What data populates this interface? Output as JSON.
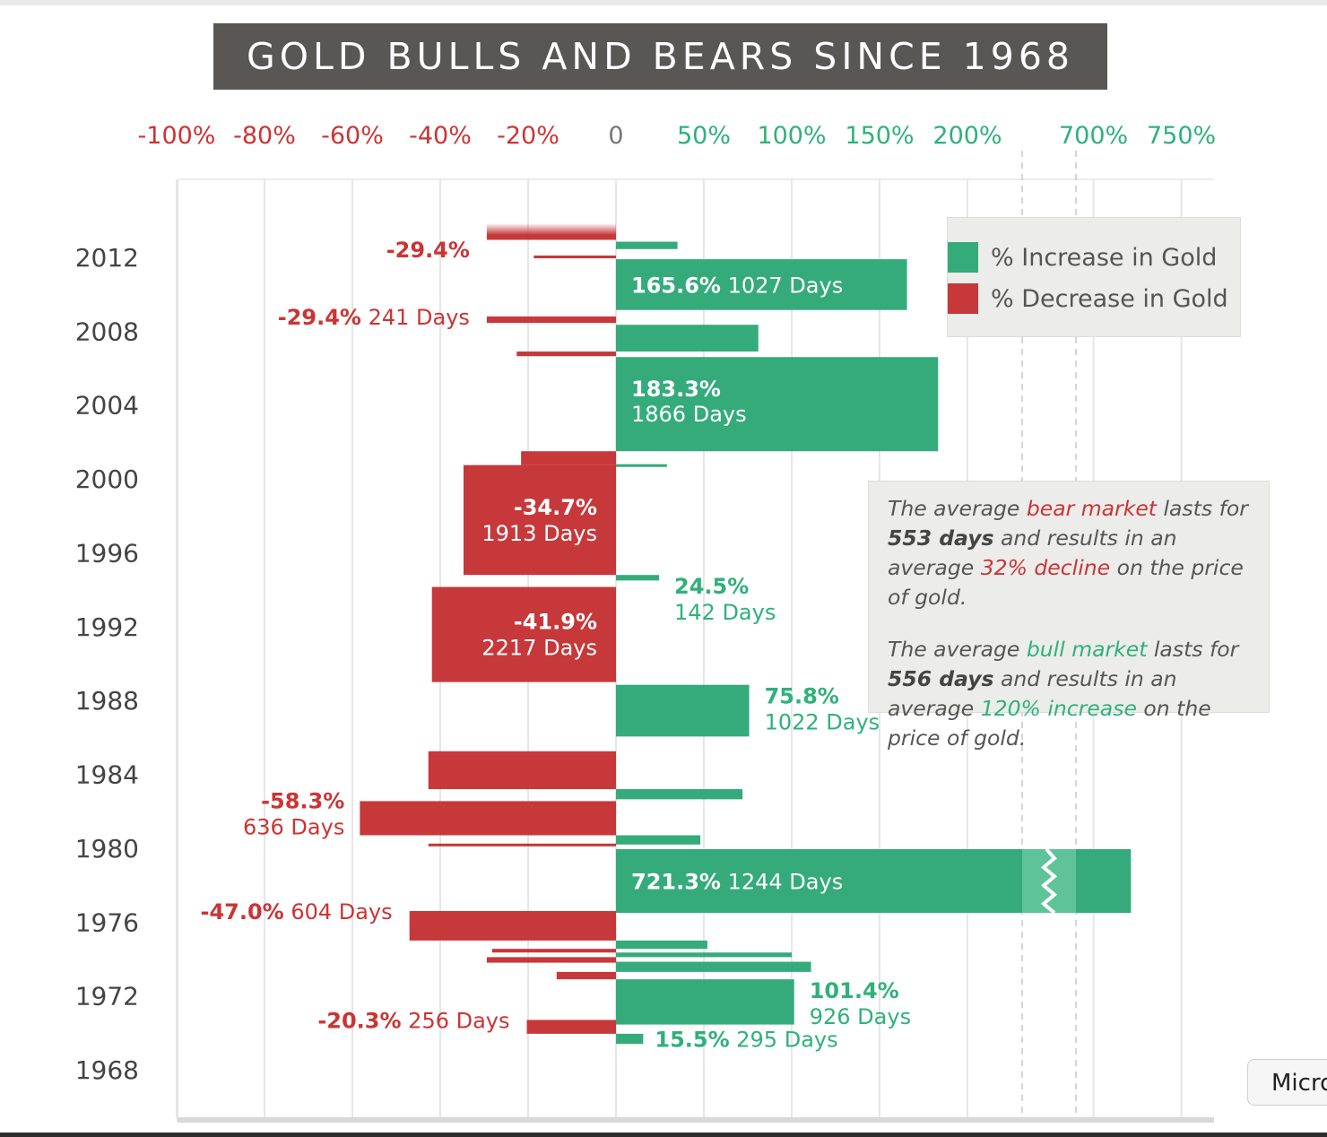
{
  "title": "GOLD BULLS AND BEARS SINCE 1968",
  "legend": [
    {
      "label": "% Increase in Gold",
      "color": "#35ab7c"
    },
    {
      "label": "% Decrease in Gold",
      "color": "#c7383a"
    }
  ],
  "note": {
    "bear": {
      "p1": "The average ",
      "hl1": "bear market",
      "p2": " lasts for ",
      "bold": "553 days",
      "p3": " and results in an average ",
      "hl2": "32% decline",
      "p4": " on the price of gold."
    },
    "bull": {
      "p1": "The average ",
      "hl1": "bull market",
      "p2": " lasts for ",
      "bold": "556 days",
      "p3": " and results in an average ",
      "hl2": "120% increase",
      "p4": " on the price of gold."
    }
  },
  "button": {
    "label": "Micro"
  },
  "chart_data": {
    "type": "bar",
    "orientation": "horizontal",
    "title": "GOLD BULLS AND BEARS SINCE 1968",
    "x_ticks_negative": [
      "-100%",
      "-80%",
      "-60%",
      "-40%",
      "-20%",
      "0"
    ],
    "x_ticks_positive": [
      "50%",
      "100%",
      "150%",
      "200%",
      "700%",
      "750%"
    ],
    "axis_break": {
      "from": 230,
      "to": 690
    },
    "y_ticks": [
      "2012",
      "2008",
      "2004",
      "2000",
      "1996",
      "1992",
      "1988",
      "1984",
      "1980",
      "1976",
      "1972",
      "1968"
    ],
    "y_range": [
      1968,
      2013.7
    ],
    "grid": true,
    "legend_position": "top-right",
    "bars": [
      {
        "type": "decrease",
        "value": -29.4,
        "start": 2012.9,
        "end": 2013.8,
        "label_pct": "-29.4%",
        "label_days": "",
        "label_pos": "left",
        "fade": true
      },
      {
        "type": "increase",
        "value": 35,
        "start": 2012.4,
        "end": 2012.8
      },
      {
        "type": "decrease",
        "value": -18.7,
        "start": 2011.9,
        "end": 2012.05
      },
      {
        "type": "increase",
        "value": 165.6,
        "start": 2009.1,
        "end": 2011.85,
        "label_pct": "165.6%",
        "label_days": "1027 Days",
        "label_pos": "inside-inline"
      },
      {
        "type": "decrease",
        "value": -29.4,
        "start": 2008.4,
        "end": 2008.75,
        "label_pct": "-29.4%",
        "label_days": "241 Days",
        "label_pos": "left-inline"
      },
      {
        "type": "increase",
        "value": 81,
        "start": 2006.85,
        "end": 2008.3
      },
      {
        "type": "decrease",
        "value": -22.6,
        "start": 2006.6,
        "end": 2006.85
      },
      {
        "type": "increase",
        "value": 183.3,
        "start": 2001.45,
        "end": 2006.55,
        "label_pct": "183.3%",
        "label_days": "1866 Days",
        "label_pos": "inside-stacked"
      },
      {
        "type": "increase",
        "value": 29,
        "start": 2000.6,
        "end": 2000.75
      },
      {
        "type": "decrease",
        "value": -21.6,
        "start": 2000.7,
        "end": 2001.45
      },
      {
        "type": "decrease",
        "value": -34.7,
        "start": 1994.75,
        "end": 2000.7,
        "label_pct": "-34.7%",
        "label_days": "1913 Days",
        "label_pos": "inside-stacked"
      },
      {
        "type": "increase",
        "value": 24.5,
        "start": 1994.45,
        "end": 1994.75,
        "label_pct": "24.5%",
        "label_days": "142 Days",
        "label_pos": "right-stacked"
      },
      {
        "type": "decrease",
        "value": -41.9,
        "start": 1988.95,
        "end": 1994.1,
        "label_pct": "-41.9%",
        "label_days": "2217 Days",
        "label_pos": "inside-stacked"
      },
      {
        "type": "increase",
        "value": 75.8,
        "start": 1986.0,
        "end": 1988.8,
        "label_pct": "75.8%",
        "label_days": "1022 Days",
        "label_pos": "right-stacked"
      },
      {
        "type": "decrease",
        "value": -42.7,
        "start": 1983.15,
        "end": 1985.2
      },
      {
        "type": "increase",
        "value": 72,
        "start": 1982.6,
        "end": 1983.15
      },
      {
        "type": "decrease",
        "value": -58.3,
        "start": 1980.65,
        "end": 1982.5,
        "label_pct": "-58.3%",
        "label_days": "636 Days",
        "label_pos": "left-stacked"
      },
      {
        "type": "increase",
        "value": 48,
        "start": 1980.15,
        "end": 1980.65
      },
      {
        "type": "decrease",
        "value": -42.7,
        "start": 1980.05,
        "end": 1980.2
      },
      {
        "type": "increase",
        "value": 721.3,
        "start": 1976.45,
        "end": 1979.9,
        "label_pct": "721.3%",
        "label_days": "1244 Days",
        "label_pos": "inside-inline",
        "break": true
      },
      {
        "type": "decrease",
        "value": -47.0,
        "start": 1974.95,
        "end": 1976.55,
        "label_pct": "-47.0%",
        "label_days": "604 Days",
        "label_pos": "left-inline"
      },
      {
        "type": "increase",
        "value": 52,
        "start": 1974.5,
        "end": 1974.95
      },
      {
        "type": "decrease",
        "value": -28.2,
        "start": 1974.3,
        "end": 1974.5
      },
      {
        "type": "increase",
        "value": 100,
        "start": 1974.05,
        "end": 1974.3
      },
      {
        "type": "decrease",
        "value": -29.4,
        "start": 1973.75,
        "end": 1974.05
      },
      {
        "type": "increase",
        "value": 111,
        "start": 1973.25,
        "end": 1973.8
      },
      {
        "type": "decrease",
        "value": -13.5,
        "start": 1972.85,
        "end": 1973.25
      },
      {
        "type": "increase",
        "value": 101.4,
        "start": 1970.4,
        "end": 1972.85,
        "label_pct": "101.4%",
        "label_days": "926 Days",
        "label_pos": "right-stacked"
      },
      {
        "type": "decrease",
        "value": -20.3,
        "start": 1969.9,
        "end": 1970.65,
        "label_pct": "-20.3%",
        "label_days": "256 Days",
        "label_pos": "left-inline"
      },
      {
        "type": "increase",
        "value": 15.5,
        "start": 1969.35,
        "end": 1969.9,
        "label_pct": "15.5%",
        "label_days": "295 Days",
        "label_pos": "right-inline"
      }
    ]
  }
}
